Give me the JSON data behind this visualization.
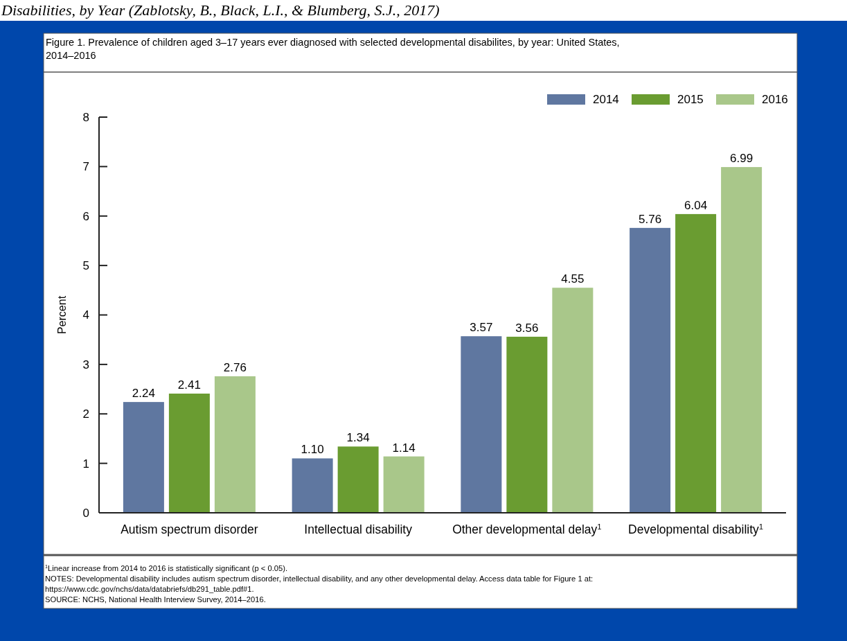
{
  "chart_data": {
    "type": "bar",
    "title": "Figure 1. Prevalence of children aged 3–17 years ever diagnosed with selected developmental disabilites, by year: United States, 2014–2016",
    "ylabel": "Percent",
    "categories": [
      "Autism spectrum disorder",
      "Intellectual disability",
      "Other developmental delay$^{1}$",
      "Developmental disability$^{1}$"
    ],
    "series": [
      {
        "name": "2014",
        "color": "#5f77a0",
        "values": [
          2.24,
          1.1,
          3.57,
          5.76
        ],
        "value_labels": [
          "2.24",
          "1.10",
          "3.57",
          "5.76"
        ]
      },
      {
        "name": "2015",
        "color": "#6a9c31",
        "values": [
          2.41,
          1.34,
          3.56,
          6.04
        ],
        "value_labels": [
          "2.41",
          "1.34",
          "3.56",
          "6.04"
        ]
      },
      {
        "name": "2016",
        "color": "#a9c78a",
        "values": [
          2.76,
          1.14,
          4.55,
          6.99
        ],
        "value_labels": [
          "2.76",
          "1.14",
          "4.55",
          "6.99"
        ]
      }
    ],
    "ylim": [
      0,
      8
    ],
    "yticks": [
      0,
      1,
      2,
      3,
      4,
      5,
      6,
      7,
      8
    ],
    "grid": false,
    "legend": "top right",
    "annotations": [
      "Disabilities, by Year (Zablotsky, B., Black, L.I., & Blumberg, S.J., 2017)",
      "$^{1}$Linear increase from 2014 to 2016 is statistically significant (p < 0.05).",
      "NOTES: Developmental disability includes autism spectrum disorder, intellectual disability, and any other developmental delay. Access data table for Figure 1 at:",
      "https://www.cdc.gov/nchs/data/databriefs/db291_table.pdf#1.",
      "SOURCE: NCHS, National Health Interview Survey, 2014–2016."
    ]
  }
}
